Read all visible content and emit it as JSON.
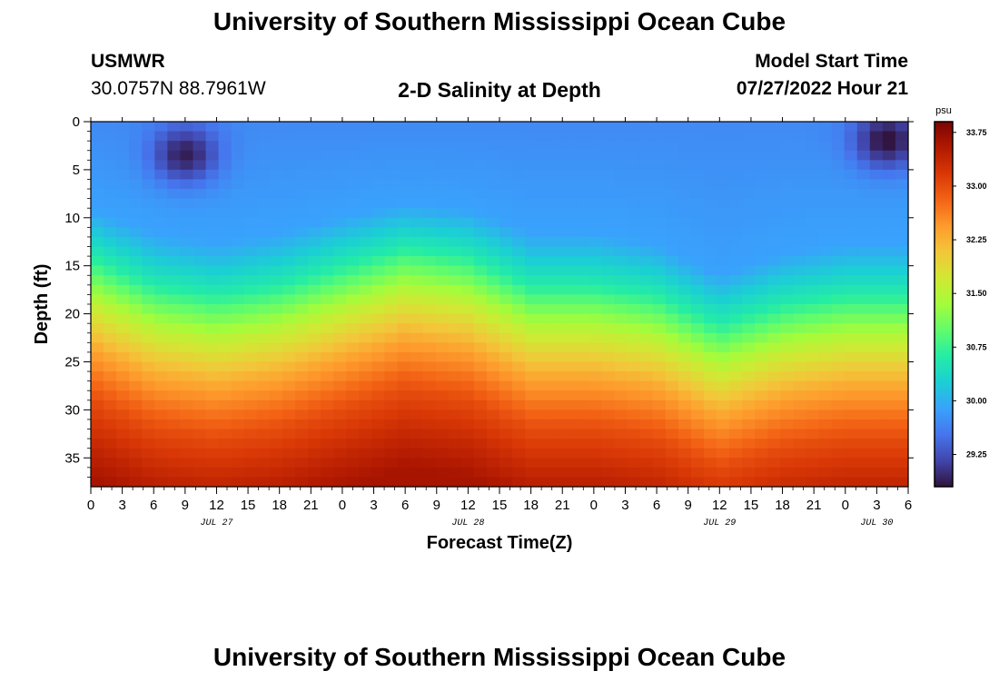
{
  "page": {
    "title_top": "University of Southern Mississippi Ocean Cube",
    "title_bottom": "University of Southern Mississippi Ocean Cube",
    "station": "USMWR",
    "coords": "30.0757N  88.7961W",
    "subtitle": "2-D Salinity at Depth",
    "model_start_label": "Model Start Time",
    "model_start_value": "07/27/2022 Hour 21"
  },
  "chart_data": {
    "type": "heatmap",
    "title": "2-D Salinity at Depth",
    "xlabel": "Forecast Time(Z)",
    "ylabel": "Depth (ft)",
    "x_ticks": [
      "0",
      "3",
      "6",
      "9",
      "12",
      "15",
      "18",
      "21",
      "0",
      "3",
      "6",
      "9",
      "12",
      "15",
      "18",
      "21",
      "0",
      "3",
      "6",
      "9",
      "12",
      "15",
      "18",
      "21",
      "0",
      "3",
      "6"
    ],
    "x_date_labels": [
      {
        "label": "JUL 27",
        "at_hour": 12
      },
      {
        "label": "JUL 28",
        "at_hour": 36
      },
      {
        "label": "JUL 29",
        "at_hour": 60
      },
      {
        "label": "JUL 30",
        "at_hour": 75
      }
    ],
    "x_range_hours": [
      0,
      78
    ],
    "y_ticks": [
      0,
      5,
      10,
      15,
      20,
      25,
      30,
      35
    ],
    "ylim": [
      0,
      38
    ],
    "y_inverted": true,
    "colorbar": {
      "unit": "psu",
      "ticks": [
        "33.75",
        "33.00",
        "32.25",
        "31.50",
        "30.75",
        "30.00",
        "29.25"
      ],
      "range": [
        28.8,
        33.9
      ],
      "colors": [
        "#30123b",
        "#4145ab",
        "#4675ed",
        "#39a2fc",
        "#1bcfd4",
        "#24eca6",
        "#61fc6c",
        "#a4fc3b",
        "#d1e834",
        "#f3c63a",
        "#fe9b2d",
        "#f36315",
        "#d93806",
        "#b11901",
        "#7a0402"
      ]
    },
    "grid": false,
    "legend": "colorbar-right",
    "profile_depth_ft": [
      0,
      5,
      10,
      15,
      20,
      25,
      30,
      35,
      38
    ],
    "profile_salinity_psu": [
      29.7,
      29.8,
      29.9,
      30.6,
      31.6,
      32.4,
      33.0,
      33.4,
      33.6
    ],
    "halocline_depth_ft": {
      "hours": [
        0,
        6,
        12,
        18,
        24,
        30,
        36,
        42,
        48,
        54,
        60,
        66,
        72,
        78
      ],
      "depth": [
        16,
        19,
        20,
        19,
        17,
        15,
        16,
        19,
        19,
        20,
        23,
        21,
        20,
        20
      ]
    },
    "low_salinity_spots": [
      {
        "hour": 9,
        "depth_ft": 3.5,
        "salinity_psu": 28.9
      },
      {
        "hour": 76,
        "depth_ft": 2,
        "salinity_psu": 28.8
      }
    ]
  }
}
